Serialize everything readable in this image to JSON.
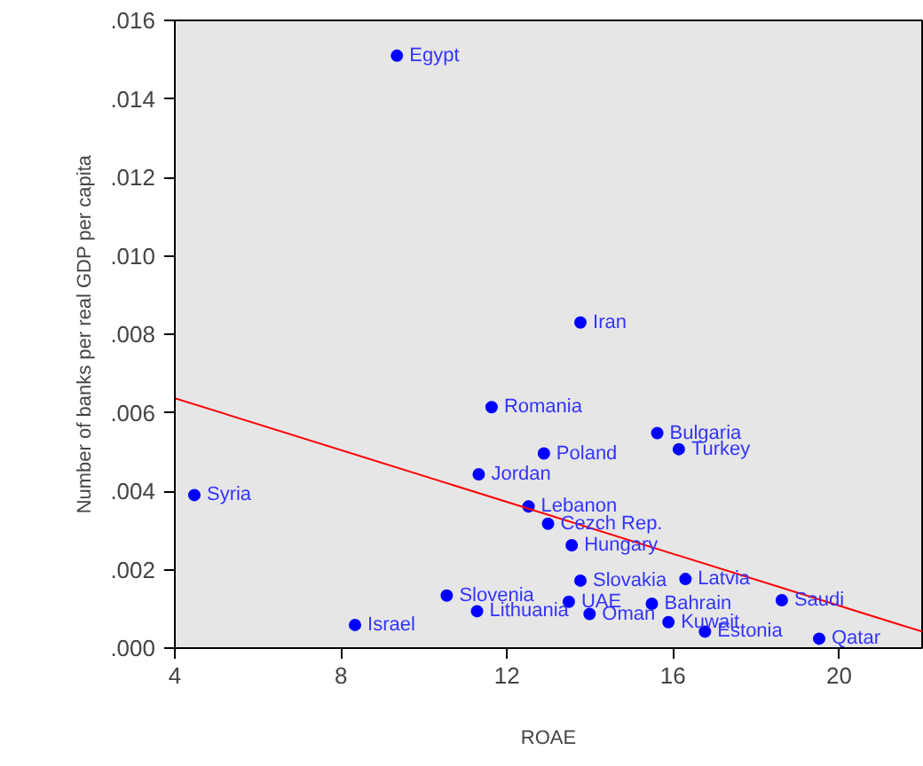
{
  "chart_data": {
    "type": "scatter",
    "xlabel": "ROAE",
    "ylabel": "Number of banks per real GDP per capita",
    "xlim": [
      4,
      22
    ],
    "ylim": [
      0,
      0.016
    ],
    "xticks": [
      4,
      8,
      12,
      16,
      20
    ],
    "yticks": [
      {
        "value": 0,
        "label": ".000"
      },
      {
        "value": 0.002,
        "label": ".002"
      },
      {
        "value": 0.004,
        "label": ".004"
      },
      {
        "value": 0.006,
        "label": ".006"
      },
      {
        "value": 0.008,
        "label": ".008"
      },
      {
        "value": 0.01,
        "label": ".010"
      },
      {
        "value": 0.012,
        "label": ".012"
      },
      {
        "value": 0.014,
        "label": ".014"
      },
      {
        "value": 0.016,
        "label": ".016"
      }
    ],
    "grid": false,
    "series": [
      {
        "marker": "circle",
        "color": "#0000ff",
        "x": [
          9.35,
          13.77,
          11.63,
          15.62,
          16.14,
          12.89,
          11.32,
          4.47,
          12.52,
          12.99,
          13.56,
          13.77,
          16.3,
          10.55,
          13.49,
          15.49,
          18.62,
          11.28,
          13.99,
          15.89,
          8.34,
          16.77,
          19.52
        ],
        "values": [
          0.0151,
          0.0083,
          0.00614,
          0.00548,
          0.00507,
          0.00496,
          0.00443,
          0.0039,
          0.00361,
          0.00317,
          0.00262,
          0.00172,
          0.00176,
          0.00134,
          0.00118,
          0.00113,
          0.00122,
          0.00094,
          0.00087,
          0.00066,
          0.00059,
          0.00042,
          0.00024
        ]
      },
      {
        "type": "line",
        "color": "#ff0000",
        "x": [
          4,
          22
        ],
        "values": [
          0.00637,
          0.00042
        ]
      }
    ],
    "annotations": [
      {
        "text": "Egypt",
        "x": 9.35,
        "y": 0.0151
      },
      {
        "text": "Iran",
        "x": 13.77,
        "y": 0.0083
      },
      {
        "text": "Romania",
        "x": 11.63,
        "y": 0.00614
      },
      {
        "text": "Bulgaria",
        "x": 15.62,
        "y": 0.00548
      },
      {
        "text": "Turkey",
        "x": 16.14,
        "y": 0.00507
      },
      {
        "text": "Poland",
        "x": 12.89,
        "y": 0.00496
      },
      {
        "text": "Jordan",
        "x": 11.32,
        "y": 0.00443
      },
      {
        "text": "Syria",
        "x": 4.47,
        "y": 0.0039
      },
      {
        "text": "Lebanon",
        "x": 12.52,
        "y": 0.00361
      },
      {
        "text": "Cezch Rep.",
        "x": 12.99,
        "y": 0.00317
      },
      {
        "text": "Hungary",
        "x": 13.56,
        "y": 0.00262
      },
      {
        "text": "Slovakia",
        "x": 13.77,
        "y": 0.00172
      },
      {
        "text": "Latvia",
        "x": 16.3,
        "y": 0.00176
      },
      {
        "text": "Slovenia",
        "x": 10.55,
        "y": 0.00134
      },
      {
        "text": "UAE",
        "x": 13.49,
        "y": 0.00118
      },
      {
        "text": "Bahrain",
        "x": 15.49,
        "y": 0.00113
      },
      {
        "text": "Saudi",
        "x": 18.62,
        "y": 0.00122
      },
      {
        "text": "Lithuania",
        "x": 11.28,
        "y": 0.00094
      },
      {
        "text": "Oman",
        "x": 13.99,
        "y": 0.00087
      },
      {
        "text": "Kuwait",
        "x": 15.89,
        "y": 0.00066
      },
      {
        "text": "Israel",
        "x": 8.34,
        "y": 0.00059
      },
      {
        "text": "Estonia",
        "x": 16.77,
        "y": 0.00042
      },
      {
        "text": "Qatar",
        "x": 19.52,
        "y": 0.00024
      }
    ]
  }
}
